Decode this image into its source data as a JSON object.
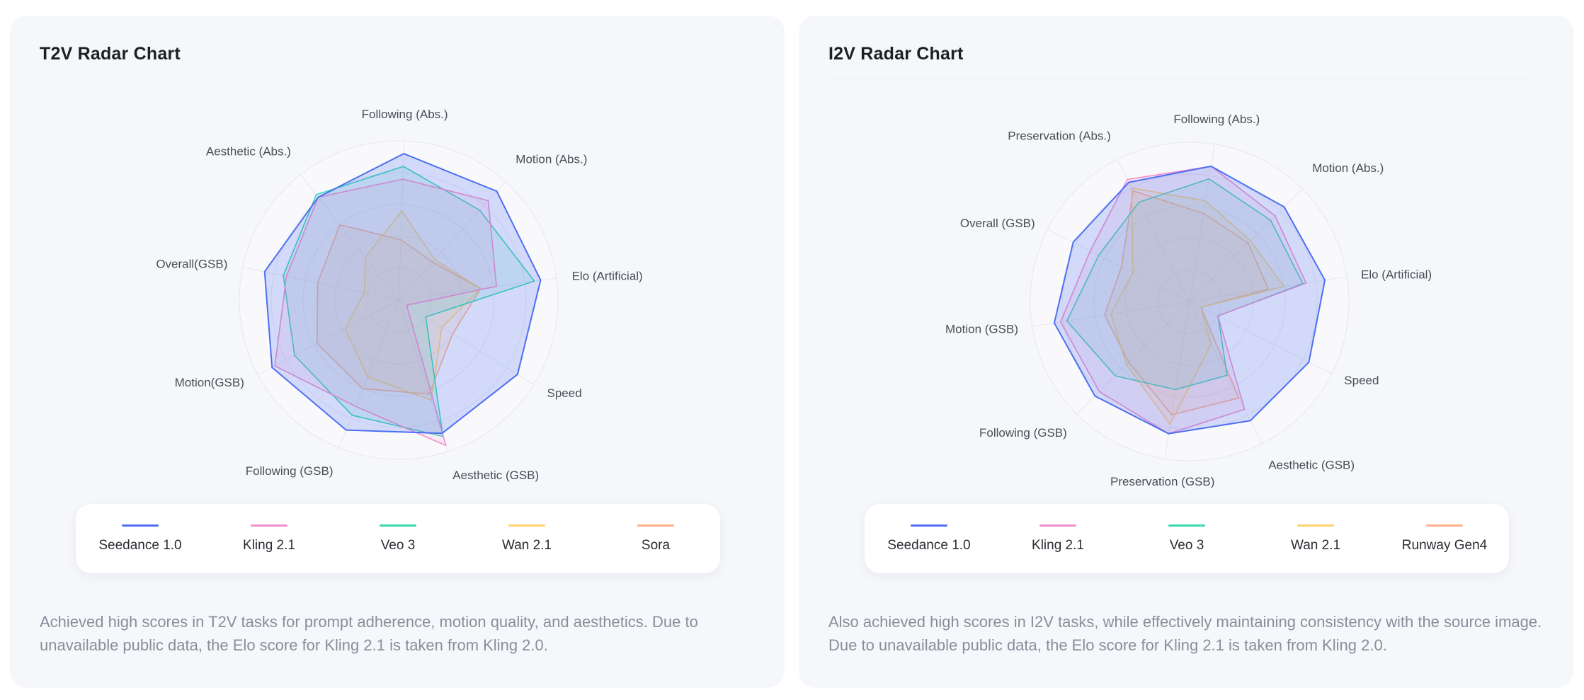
{
  "colors": {
    "Seedance 1.0": "#4d6ff3",
    "Kling 2.1": "#f08fcc",
    "Veo 3": "#36d8b4",
    "Wan 2.1": "#ffd36b",
    "Sora": "#ffb08a",
    "Runway Gen4": "#ffb08a"
  },
  "panels": [
    {
      "title": "T2V Radar Chart",
      "caption": "Achieved high scores in T2V tasks for prompt adherence, motion quality, and aesthetics. Due to unavailable public data, the Elo score for Kling 2.1 is taken from Kling 2.0."
    },
    {
      "title": "I2V Radar Chart",
      "caption": "Also achieved high scores in I2V tasks, while effectively maintaining consistency with the source image. Due to unavailable public data, the Elo score for Kling 2.1 is taken from Kling 2.0."
    }
  ],
  "chart_data": [
    {
      "type": "radar",
      "title": "T2V Radar Chart",
      "axes": [
        "Following (Abs.)",
        "Motion  (Abs.)",
        "Elo (Artificial)",
        "Speed",
        "Aesthetic (GSB)",
        "Following (GSB)",
        "Motion(GSB)",
        "Overall(GSB)",
        "Aesthetic (Abs.)"
      ],
      "range": [
        0,
        5
      ],
      "series": [
        {
          "name": "Seedance 1.0",
          "values": [
            4.6,
            4.6,
            4.5,
            4.4,
            4.4,
            4.4,
            4.5,
            4.3,
            4.1
          ]
        },
        {
          "name": "Kling 2.1",
          "values": [
            3.8,
            4.2,
            3.1,
            0.3,
            4.8,
            3.6,
            4.4,
            3.6,
            4.1
          ]
        },
        {
          "name": "Veo 3",
          "values": [
            4.2,
            3.8,
            4.3,
            1.0,
            4.5,
            3.9,
            3.7,
            3.7,
            4.2
          ]
        },
        {
          "name": "Wan 2.1",
          "values": [
            2.8,
            1.7,
            2.6,
            1.6,
            3.3,
            2.6,
            1.9,
            1.1,
            1.7
          ]
        },
        {
          "name": "Sora",
          "values": [
            1.9,
            1.6,
            2.6,
            2.0,
            3.1,
            3.0,
            2.9,
            2.6,
            3.0
          ]
        }
      ]
    },
    {
      "type": "radar",
      "title": "I2V Radar Chart",
      "axes": [
        "Following (Abs.)",
        "Motion (Abs.)",
        "Elo (Artificial)",
        "Speed",
        "Aesthetic (GSB)",
        "Preservation (GSB)",
        "Following (GSB)",
        "Motion (GSB)",
        "Overall (GSB)",
        "Preservation (Abs.)"
      ],
      "range": [
        0,
        5
      ],
      "series": [
        {
          "name": "Seedance 1.0",
          "values": [
            4.3,
            4.2,
            4.3,
            4.2,
            4.2,
            4.2,
            4.2,
            4.3,
            4.1,
            4.2
          ]
        },
        {
          "name": "Kling 2.1",
          "values": [
            4.3,
            3.8,
            3.7,
            1.0,
            3.8,
            4.2,
            4.0,
            4.1,
            3.5,
            4.3
          ]
        },
        {
          "name": "Veo 3",
          "values": [
            3.9,
            3.6,
            3.6,
            1.0,
            2.6,
            2.8,
            3.3,
            3.9,
            3.2,
            3.5
          ]
        },
        {
          "name": "Wan 2.1",
          "values": [
            3.2,
            2.7,
            3.0,
            0.4,
            1.5,
            3.9,
            2.8,
            2.5,
            2.0,
            4.0
          ]
        },
        {
          "name": "Runway Gen4",
          "values": [
            2.8,
            2.6,
            2.5,
            0.4,
            3.4,
            3.6,
            2.7,
            2.7,
            2.4,
            3.9
          ]
        }
      ]
    }
  ]
}
